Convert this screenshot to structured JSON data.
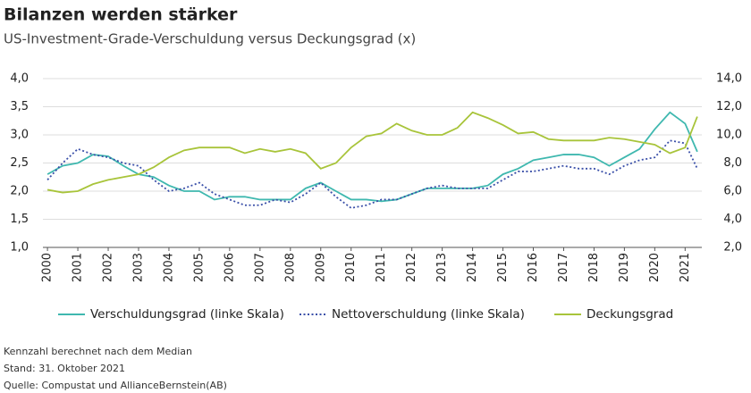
{
  "chart_data": {
    "type": "line",
    "title": "Bilanzen werden stärker",
    "subtitle": "US-Investment-Grade-Verschuldung versus Deckungsgrad (x)",
    "x": [
      2000,
      2000.5,
      2001,
      2001.5,
      2002,
      2002.5,
      2003,
      2003.5,
      2004,
      2004.5,
      2005,
      2005.5,
      2006,
      2006.5,
      2007,
      2007.5,
      2008,
      2008.5,
      2009,
      2009.5,
      2010,
      2010.5,
      2011,
      2011.5,
      2012,
      2012.5,
      2013,
      2013.5,
      2014,
      2014.5,
      2015,
      2015.5,
      2016,
      2016.5,
      2017,
      2017.5,
      2018,
      2018.5,
      2019,
      2019.5,
      2020,
      2020.5,
      2021,
      2021.4
    ],
    "series": [
      {
        "name": "Verschuldungsgrad (linke Skala)",
        "color": "#3fb8af",
        "style": "solid",
        "values": [
          2.3,
          2.45,
          2.5,
          2.65,
          2.62,
          2.45,
          2.3,
          2.25,
          2.1,
          2.0,
          2.0,
          1.85,
          1.9,
          1.9,
          1.85,
          1.85,
          1.85,
          2.05,
          2.15,
          2.0,
          1.85,
          1.85,
          1.82,
          1.85,
          1.95,
          2.05,
          2.05,
          2.05,
          2.05,
          2.1,
          2.3,
          2.4,
          2.55,
          2.6,
          2.65,
          2.65,
          2.6,
          2.45,
          2.6,
          2.75,
          3.1,
          3.4,
          3.2,
          2.7
        ]
      },
      {
        "name": "Nettoverschuldung (linke Skala)",
        "color": "#3a4fa8",
        "style": "dotted",
        "values": [
          2.2,
          2.5,
          2.75,
          2.65,
          2.6,
          2.5,
          2.45,
          2.2,
          2.0,
          2.05,
          2.15,
          1.95,
          1.85,
          1.75,
          1.75,
          1.85,
          1.8,
          1.95,
          2.15,
          1.9,
          1.7,
          1.75,
          1.85,
          1.85,
          1.95,
          2.05,
          2.1,
          2.05,
          2.05,
          2.05,
          2.2,
          2.35,
          2.35,
          2.4,
          2.45,
          2.4,
          2.4,
          2.3,
          2.45,
          2.55,
          2.6,
          2.9,
          2.85,
          2.4
        ]
      },
      {
        "name": "Deckungsgrad",
        "color": "#a8c43a",
        "style": "solid",
        "axis": "y2",
        "values": [
          6.1,
          5.9,
          6.0,
          6.5,
          6.8,
          7.0,
          7.2,
          7.7,
          8.4,
          8.9,
          9.1,
          9.1,
          9.1,
          8.7,
          9.0,
          8.8,
          9.0,
          8.7,
          7.6,
          8.0,
          9.1,
          9.9,
          10.1,
          10.8,
          10.3,
          10.0,
          10.0,
          10.5,
          11.6,
          11.2,
          10.7,
          10.1,
          10.2,
          9.7,
          9.6,
          9.6,
          9.6,
          9.8,
          9.7,
          9.5,
          9.3,
          8.7,
          9.1,
          11.3
        ]
      }
    ],
    "xlim": [
      1999.85,
      2021.55
    ],
    "xticks": [
      2000,
      2001,
      2002,
      2003,
      2004,
      2005,
      2006,
      2007,
      2008,
      2009,
      2010,
      2011,
      2012,
      2013,
      2014,
      2015,
      2016,
      2017,
      2018,
      2019,
      2020,
      2021
    ],
    "ylim": [
      1.0,
      4.0
    ],
    "yticks": [
      {
        "value": 1.0,
        "label": "1,0"
      },
      {
        "value": 1.5,
        "label": "1,5"
      },
      {
        "value": 2.0,
        "label": "2,0"
      },
      {
        "value": 2.5,
        "label": "2,5"
      },
      {
        "value": 3.0,
        "label": "3,0"
      },
      {
        "value": 3.5,
        "label": "3,5"
      },
      {
        "value": 4.0,
        "label": "4,0"
      }
    ],
    "y2lim": [
      2.0,
      14.0
    ],
    "y2ticks": [
      {
        "value": 2.0,
        "label": "2,0"
      },
      {
        "value": 4.0,
        "label": "4,0"
      },
      {
        "value": 6.0,
        "label": "6,0"
      },
      {
        "value": 8.0,
        "label": "8,0"
      },
      {
        "value": 10.0,
        "label": "10,0"
      },
      {
        "value": 12.0,
        "label": "12,0"
      },
      {
        "value": 14.0,
        "label": "14,0"
      }
    ],
    "grid": true,
    "notes": [
      "Kennzahl berechnet nach dem Median",
      "Stand: 31. Oktober 2021",
      "Quelle: Compustat und AllianceBernstein(AB)"
    ]
  }
}
